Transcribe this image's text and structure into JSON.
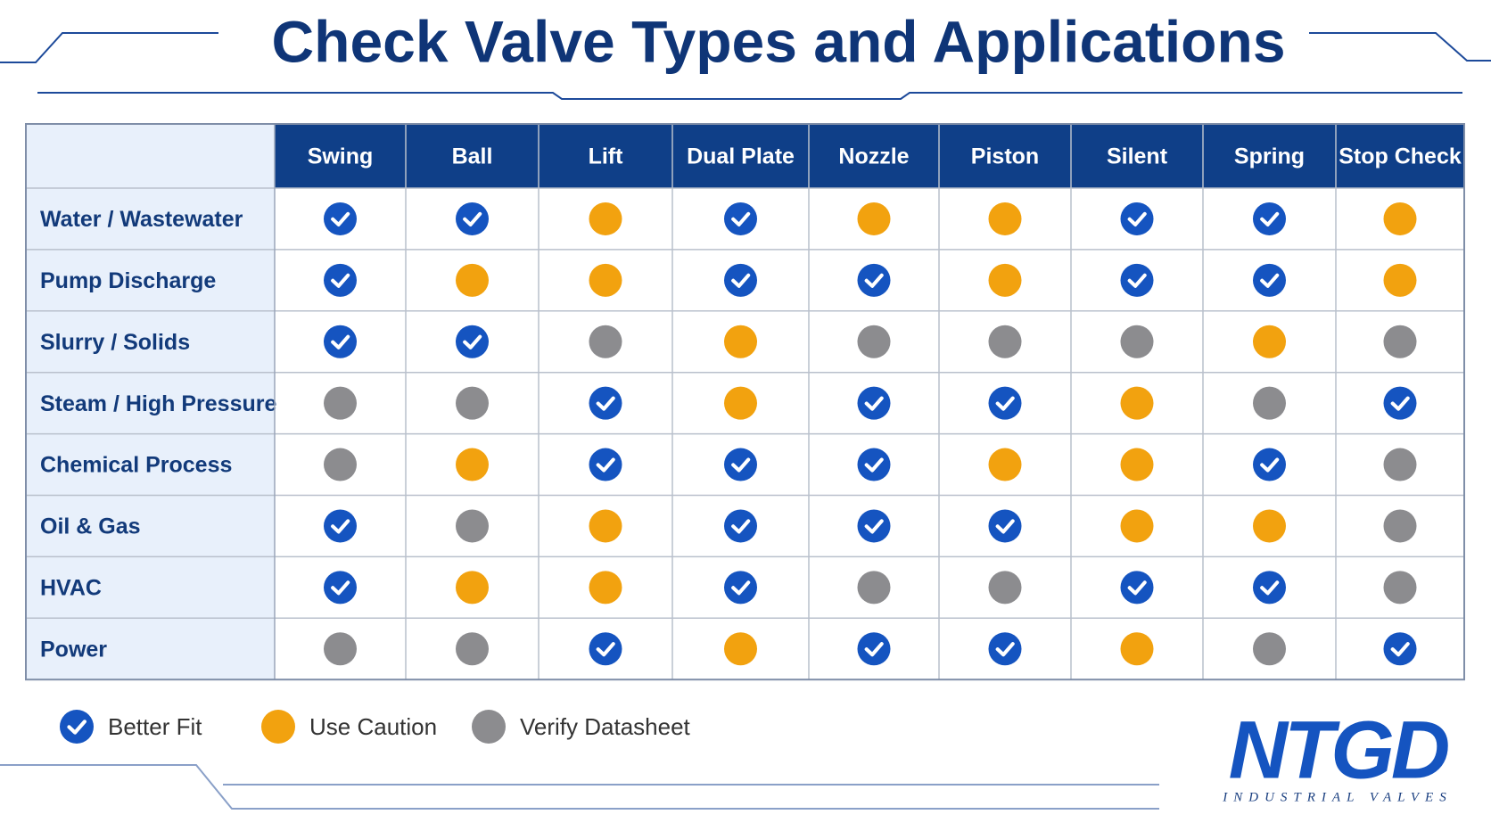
{
  "title": "Check Valve Types and Applications",
  "table": {
    "columns": [
      "Swing",
      "Ball",
      "Lift",
      "Dual Plate",
      "Nozzle",
      "Piston",
      "Silent",
      "Spring",
      "Stop Check"
    ],
    "rows": [
      {
        "label": "Water / Wastewater",
        "cells": [
          0,
          0,
          1,
          0,
          1,
          1,
          0,
          0,
          1
        ]
      },
      {
        "label": "Pump Discharge",
        "cells": [
          0,
          1,
          1,
          0,
          0,
          1,
          0,
          0,
          1
        ]
      },
      {
        "label": "Slurry / Solids",
        "cells": [
          0,
          0,
          2,
          1,
          2,
          2,
          2,
          1,
          2
        ]
      },
      {
        "label": "Steam / High Pressure",
        "cells": [
          2,
          2,
          0,
          1,
          0,
          0,
          1,
          2,
          0
        ]
      },
      {
        "label": "Chemical Process",
        "cells": [
          2,
          1,
          0,
          0,
          0,
          1,
          1,
          0,
          2
        ]
      },
      {
        "label": "Oil & Gas",
        "cells": [
          0,
          2,
          1,
          0,
          0,
          0,
          1,
          1,
          2
        ]
      },
      {
        "label": "HVAC",
        "cells": [
          0,
          1,
          1,
          0,
          2,
          2,
          0,
          0,
          2
        ]
      },
      {
        "label": "Power",
        "cells": [
          2,
          2,
          0,
          1,
          0,
          0,
          1,
          2,
          0
        ]
      }
    ]
  },
  "legend": [
    {
      "label": "Better Fit",
      "color": "#1554c0",
      "check": true
    },
    {
      "label": "Use Caution",
      "color": "#f2a20f",
      "check": false
    },
    {
      "label": "Verify Datasheet",
      "color": "#8c8c8f",
      "check": false
    }
  ],
  "logo": {
    "name": "NTGD",
    "tagline": "INDUSTRIAL VALVES"
  }
}
